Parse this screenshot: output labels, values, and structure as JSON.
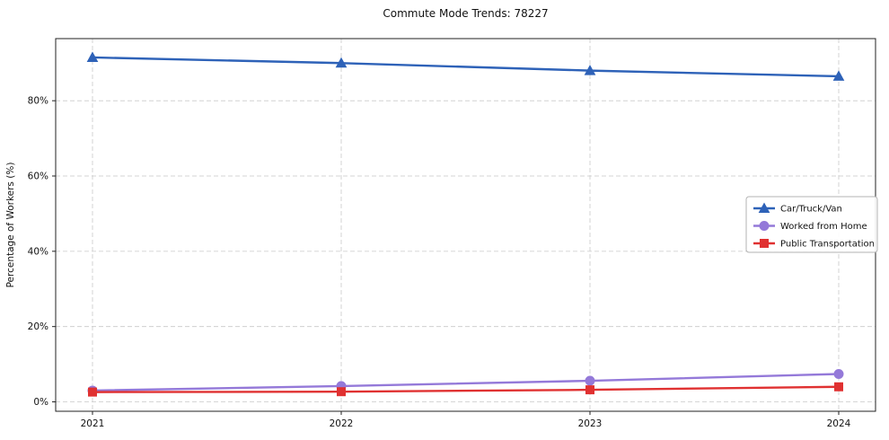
{
  "title": "Commute Mode Trends: 78227",
  "chart_data": {
    "type": "line",
    "title": "Commute Mode Trends: 78227",
    "xlabel": "",
    "ylabel": "Percentage of Workers (%)",
    "x": [
      2021,
      2022,
      2023,
      2024
    ],
    "series": [
      {
        "name": "Car/Truck/Van",
        "values": [
          91.5,
          90.0,
          88.0,
          86.5
        ],
        "color": "#2e62b8",
        "marker": "triangle"
      },
      {
        "name": "Worked from Home",
        "values": [
          3.0,
          4.2,
          5.6,
          7.4
        ],
        "color": "#9479d9",
        "marker": "circle"
      },
      {
        "name": "Public Transportation",
        "values": [
          2.6,
          2.7,
          3.2,
          4.0
        ],
        "color": "#e03131",
        "marker": "square"
      }
    ],
    "yticks": [
      0,
      20,
      40,
      60,
      80
    ],
    "ytick_labels": [
      "0%",
      "20%",
      "40%",
      "60%",
      "80%"
    ],
    "ylim": [
      -2.5,
      96.5
    ],
    "grid": true,
    "grid_style": "dashed",
    "grid_color": "#c9c9c9",
    "legend_position": "right-center",
    "axis_color": "#222222"
  }
}
